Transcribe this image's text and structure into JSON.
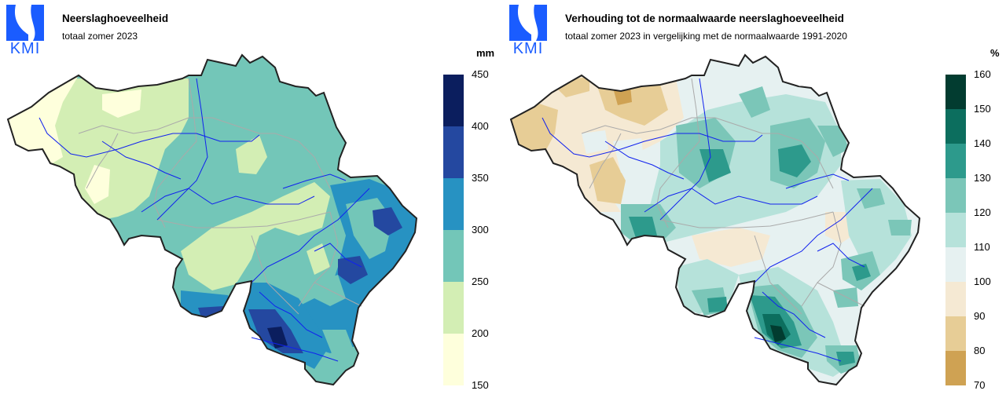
{
  "colors": {
    "brand": "#1a5cff",
    "border": "#222222",
    "provinces": "#aaaaaa",
    "rivers": "#1122ee"
  },
  "left_map": {
    "logo": "KMI",
    "title": "Neerslaghoeveelheid",
    "subtitle": "totaal zomer 2023",
    "unit": "mm",
    "legend": {
      "ticks": [
        "450",
        "400",
        "350",
        "300",
        "250",
        "200",
        "150"
      ],
      "colors": [
        "#0b1e5e",
        "#2448a0",
        "#2792c2",
        "#73c6b8",
        "#d3eeb4",
        "#feffdc"
      ]
    }
  },
  "right_map": {
    "logo": "KMI",
    "title": "Verhouding tot de normaalwaarde neerslaghoeveelheid",
    "subtitle": "totaal zomer 2023 in vergelijking met de normaalwaarde 1991-2020",
    "unit": "%",
    "legend": {
      "ticks": [
        "160",
        "150",
        "140",
        "130",
        "120",
        "110",
        "100",
        "90",
        "80",
        "70"
      ],
      "colors": [
        "#023c30",
        "#0c6e5e",
        "#2d9a8c",
        "#7bc6b8",
        "#b6e2da",
        "#e6f1f1",
        "#f5e9d3",
        "#e7cd96",
        "#cfa253"
      ]
    }
  }
}
